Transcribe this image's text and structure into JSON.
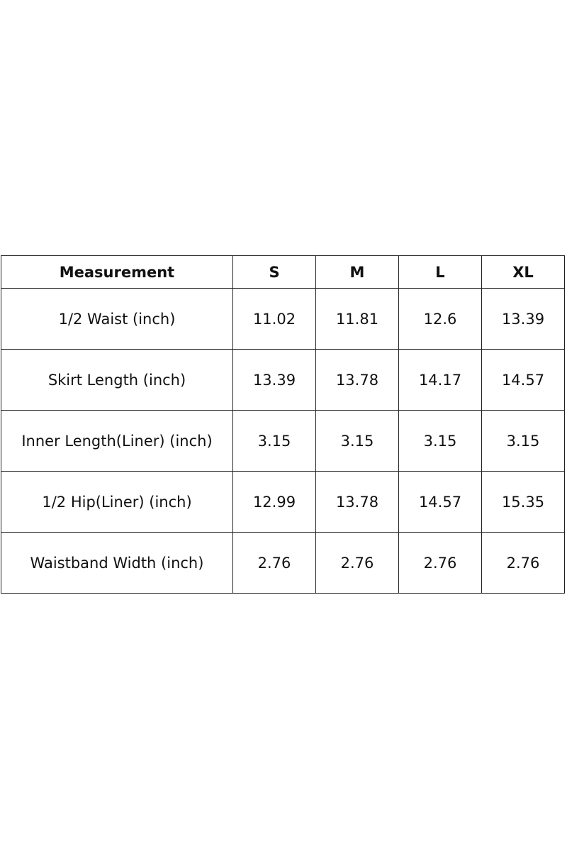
{
  "table": {
    "header": [
      "Measurement",
      "S",
      "M",
      "L",
      "XL"
    ],
    "rows": [
      [
        "1/2 Waist (inch)",
        "11.02",
        "11.81",
        "12.6",
        "13.39"
      ],
      [
        "Skirt Length (inch)",
        "13.39",
        "13.78",
        "14.17",
        "14.57"
      ],
      [
        "Inner Length(Liner) (inch)",
        "3.15",
        "3.15",
        "3.15",
        "3.15"
      ],
      [
        "1/2 Hip(Liner) (inch)",
        "12.99",
        "13.78",
        "14.57",
        "15.35"
      ],
      [
        "Waistband Width (inch)",
        "2.76",
        "2.76",
        "2.76",
        "2.76"
      ]
    ]
  }
}
